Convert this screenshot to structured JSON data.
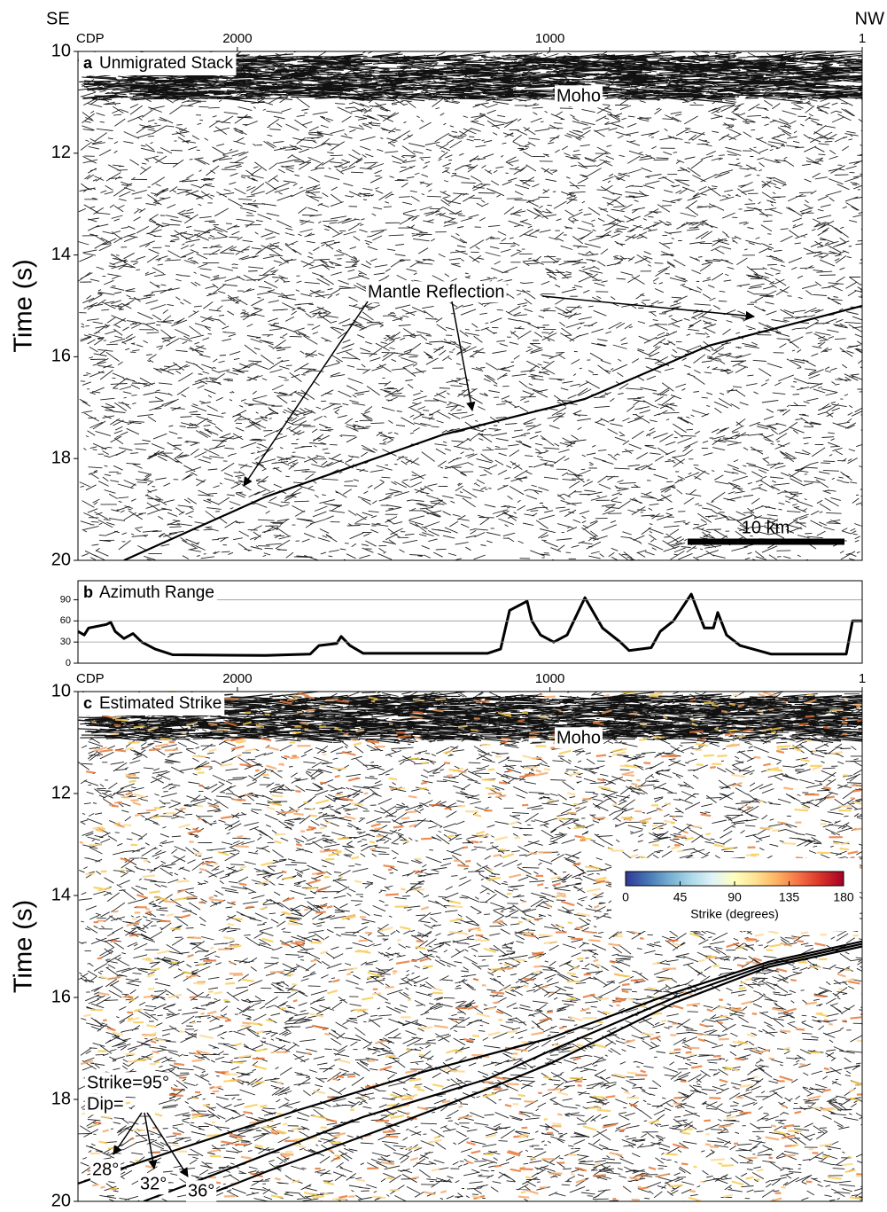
{
  "chart_data": [
    {
      "type": "line",
      "panel": "a",
      "title": "Unmigrated Stack",
      "direction_labels": [
        "SE",
        "NW"
      ],
      "xlabel": "CDP",
      "ylabel": "Time (s)",
      "xlim": [
        2510,
        1
      ],
      "xticks": [
        2000,
        1000,
        1
      ],
      "ylim": [
        10,
        20
      ],
      "yticks": [
        10,
        12,
        14,
        16,
        18,
        20
      ],
      "y_inverted": true,
      "annotations": [
        "Moho",
        "Mantle Reflection"
      ],
      "scale_bar": "10 km",
      "series": [
        {
          "color": "#000000",
          "x": [
            2363,
            1909,
            1342,
            888,
            491,
            1
          ],
          "values": [
            20.0,
            18.75,
            17.53,
            16.83,
            15.78,
            15.0
          ]
        }
      ]
    },
    {
      "type": "line",
      "panel": "b",
      "title": "Azimuth Range",
      "xlim": [
        2510,
        1
      ],
      "ylim": [
        0,
        117
      ],
      "yticks": [
        0,
        30,
        60,
        90
      ],
      "grid": true,
      "series": [
        {
          "color": "#000000",
          "x": [
            2510,
            2490,
            2476,
            2419,
            2405,
            2391,
            2363,
            2334,
            2306,
            2263,
            2207,
            1909,
            1767,
            1739,
            1682,
            1668,
            1640,
            1597,
            1200,
            1158,
            1129,
            1073,
            1058,
            1030,
            988,
            945,
            888,
            832,
            775,
            747,
            676,
            647,
            605,
            548,
            506,
            477,
            463,
            435,
            392,
            293,
            52,
            32,
            1
          ],
          "values": [
            45,
            40,
            50,
            55,
            58,
            45,
            35,
            42,
            30,
            20,
            12,
            11,
            13,
            25,
            28,
            38,
            25,
            14,
            14,
            20,
            75,
            88,
            60,
            40,
            30,
            40,
            93,
            50,
            30,
            18,
            22,
            45,
            60,
            98,
            50,
            50,
            72,
            40,
            25,
            13,
            13,
            60,
            60
          ]
        }
      ]
    },
    {
      "type": "line",
      "panel": "c",
      "title": "Estimated Strike",
      "xlabel": "CDP",
      "ylabel": "Time (s)",
      "xlim": [
        2510,
        1
      ],
      "xticks": [
        2000,
        1000,
        1
      ],
      "ylim": [
        10,
        20
      ],
      "yticks": [
        10,
        12,
        14,
        16,
        18,
        20
      ],
      "y_inverted": true,
      "annotations": [
        "Moho",
        "Strike=95°",
        "Dip="
      ],
      "series": [
        {
          "name": "28°",
          "color": "#000000",
          "x": [
            2510,
            2200,
            1800,
            1400,
            1000,
            600,
            300,
            1
          ],
          "values": [
            19.65,
            19.0,
            18.2,
            17.45,
            16.8,
            15.9,
            15.3,
            14.9
          ]
        },
        {
          "name": "32°",
          "color": "#000000",
          "x": [
            2300,
            2000,
            1600,
            1200,
            1000,
            600,
            300,
            1
          ],
          "values": [
            20.0,
            19.3,
            18.35,
            17.6,
            17.05,
            16.0,
            15.35,
            14.95
          ]
        },
        {
          "name": "36°",
          "color": "#000000",
          "x": [
            2150,
            1900,
            1500,
            1200,
            1000,
            600,
            300,
            1
          ],
          "values": [
            20.0,
            19.4,
            18.5,
            17.8,
            17.3,
            16.1,
            15.4,
            15.0
          ]
        }
      ],
      "colorbar": {
        "label": "Strike (degrees)",
        "lim": [
          0,
          180
        ],
        "ticks": [
          0,
          45,
          90,
          135,
          180
        ],
        "colors": [
          "#313695",
          "#4575b4",
          "#74add1",
          "#abd9e9",
          "#e0f3f8",
          "#ffffbf",
          "#fee090",
          "#fdae61",
          "#f46d43",
          "#d73027",
          "#a50026"
        ]
      }
    }
  ]
}
